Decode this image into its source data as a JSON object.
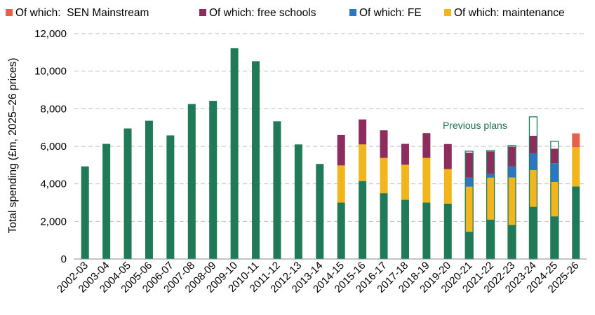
{
  "chart_data": {
    "type": "bar",
    "stacked": true,
    "title": "",
    "xlabel": "",
    "ylabel": "Total spending (£m, 2025–26 prices)",
    "ylim": [
      0,
      12000
    ],
    "yticks": [
      "0",
      "2,000",
      "4,000",
      "6,000",
      "8,000",
      "10,000",
      "12,000"
    ],
    "grid": "horizontal dashed",
    "legend_position": "top",
    "categories": [
      "2002-03",
      "2003-04",
      "2004-05",
      "2005-06",
      "2006-07",
      "2007-08",
      "2008-09",
      "2009-10",
      "2010-11",
      "2011-12",
      "2012-13",
      "2013-14",
      "2014-15",
      "2015-16",
      "2016-17",
      "2017-18",
      "2018-19",
      "2019-20",
      "2020-21",
      "2021-22",
      "2022-23",
      "2023-24",
      "2024-25",
      "2025-26"
    ],
    "series": [
      {
        "key": "base",
        "color": "#217a57",
        "values": [
          4930,
          6130,
          6950,
          7360,
          6580,
          8250,
          8420,
          11220,
          10530,
          7330,
          6100,
          5060,
          3000,
          4150,
          3500,
          3150,
          3000,
          2950,
          1450,
          2100,
          1820,
          2780,
          2270,
          3860
        ]
      },
      {
        "key": "maintenance",
        "name": "Of which: maintenance",
        "color": "#f2b61c",
        "values": [
          0,
          0,
          0,
          0,
          0,
          0,
          0,
          0,
          0,
          0,
          0,
          0,
          1980,
          1950,
          1880,
          1870,
          2380,
          1840,
          2400,
          2230,
          2520,
          1950,
          1830,
          2090
        ]
      },
      {
        "key": "fe",
        "name": "Of which: FE",
        "color": "#2d75c5",
        "values": [
          0,
          0,
          0,
          0,
          0,
          0,
          0,
          0,
          0,
          0,
          0,
          0,
          0,
          0,
          0,
          0,
          0,
          0,
          480,
          200,
          600,
          900,
          1000,
          0
        ]
      },
      {
        "key": "free_schools",
        "name": "Of which: free schools",
        "color": "#8e2c5e",
        "values": [
          0,
          0,
          0,
          0,
          0,
          0,
          0,
          0,
          0,
          0,
          0,
          0,
          1620,
          1330,
          1470,
          1110,
          1320,
          1330,
          1330,
          1200,
          1040,
          930,
          770,
          0
        ]
      },
      {
        "key": "sen",
        "name": "Of which:  SEN Mainstream",
        "color": "#e8604a",
        "values": [
          0,
          0,
          0,
          0,
          0,
          0,
          0,
          0,
          0,
          0,
          0,
          0,
          0,
          0,
          0,
          0,
          0,
          0,
          0,
          0,
          0,
          0,
          0,
          740
        ]
      }
    ],
    "previous_plans": {
      "label": "Previous plans",
      "values": [
        null,
        null,
        null,
        null,
        null,
        null,
        null,
        null,
        null,
        null,
        null,
        null,
        null,
        null,
        null,
        null,
        null,
        null,
        5740,
        5770,
        6040,
        7570,
        6270,
        null
      ]
    },
    "legend": [
      "Of which:  SEN Mainstream",
      "Of which: free schools",
      "Of which: FE",
      "Of which: maintenance"
    ]
  }
}
